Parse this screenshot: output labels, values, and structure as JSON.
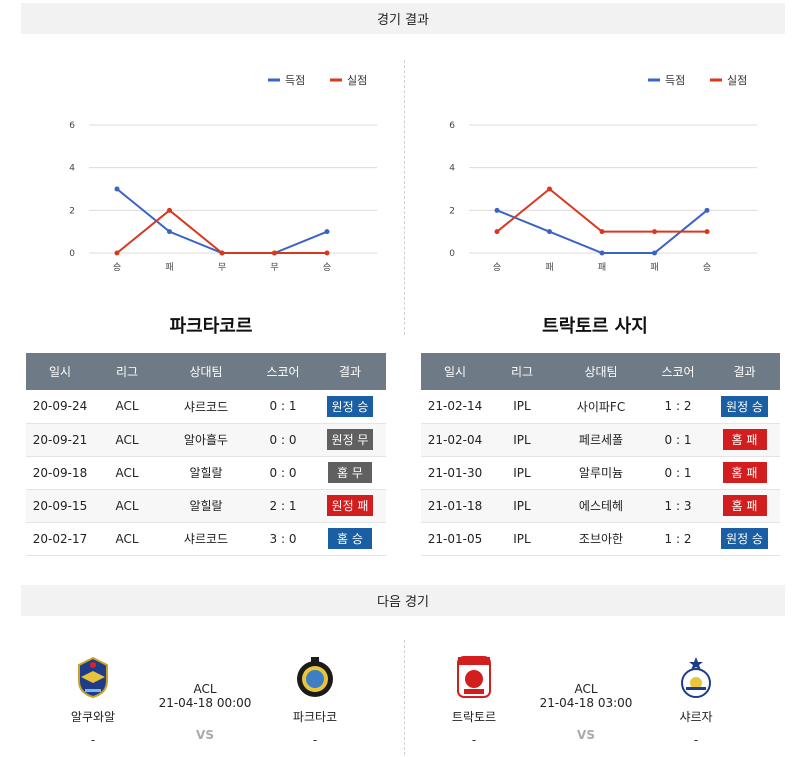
{
  "sections": {
    "results_title": "경기 결과",
    "next_title": "다음 경기"
  },
  "legend": {
    "scored": "득점",
    "conceded": "실점"
  },
  "colors": {
    "scored": "#3a63c7",
    "conceded": "#d9381e",
    "win_badge": "#1a5fa3",
    "draw_badge": "#606060",
    "loss_badge": "#d21e1e"
  },
  "chart_data": [
    {
      "type": "line",
      "categories": [
        "승",
        "패",
        "무",
        "무",
        "승"
      ],
      "ylim": [
        0,
        6
      ],
      "yticks": [
        0,
        2,
        4,
        6
      ],
      "grid": true,
      "legend_position": "top-right",
      "series": [
        {
          "name": "득점",
          "values": [
            3,
            1,
            0,
            0,
            1
          ]
        },
        {
          "name": "실점",
          "values": [
            0,
            2,
            0,
            0,
            0
          ]
        }
      ]
    },
    {
      "type": "line",
      "categories": [
        "승",
        "패",
        "패",
        "패",
        "승"
      ],
      "ylim": [
        0,
        6
      ],
      "yticks": [
        0,
        2,
        4,
        6
      ],
      "grid": true,
      "legend_position": "top-right",
      "series": [
        {
          "name": "득점",
          "values": [
            2,
            1,
            0,
            0,
            2
          ]
        },
        {
          "name": "실점",
          "values": [
            1,
            3,
            1,
            1,
            1
          ]
        }
      ]
    }
  ],
  "left_team": {
    "name": "파크타코르",
    "headers": [
      "일시",
      "리그",
      "상대팀",
      "스코어",
      "결과"
    ],
    "rows": [
      {
        "date": "20-09-24",
        "league": "ACL",
        "opponent": "샤르코드",
        "score": "0 : 1",
        "result": "원정 승",
        "color": "blue"
      },
      {
        "date": "20-09-21",
        "league": "ACL",
        "opponent": "알아흘두",
        "score": "0 : 0",
        "result": "원정 무",
        "color": "gray"
      },
      {
        "date": "20-09-18",
        "league": "ACL",
        "opponent": "알힐랄",
        "score": "0 : 0",
        "result": "홈 무",
        "color": "gray"
      },
      {
        "date": "20-09-15",
        "league": "ACL",
        "opponent": "알힐랄",
        "score": "2 : 1",
        "result": "원정 패",
        "color": "red"
      },
      {
        "date": "20-02-17",
        "league": "ACL",
        "opponent": "샤르코드",
        "score": "3 : 0",
        "result": "홈 승",
        "color": "blue"
      }
    ]
  },
  "right_team": {
    "name": "트락토르 사지",
    "headers": [
      "일시",
      "리그",
      "상대팀",
      "스코어",
      "결과"
    ],
    "rows": [
      {
        "date": "21-02-14",
        "league": "IPL",
        "opponent": "사이파FC",
        "score": "1 : 2",
        "result": "원정 승",
        "color": "blue"
      },
      {
        "date": "21-02-04",
        "league": "IPL",
        "opponent": "페르세폴",
        "score": "0 : 1",
        "result": "홈 패",
        "color": "red"
      },
      {
        "date": "21-01-30",
        "league": "IPL",
        "opponent": "알루미늄",
        "score": "0 : 1",
        "result": "홈 패",
        "color": "red"
      },
      {
        "date": "21-01-18",
        "league": "IPL",
        "opponent": "에스테헤",
        "score": "1 : 3",
        "result": "홈 패",
        "color": "red"
      },
      {
        "date": "21-01-05",
        "league": "IPL",
        "opponent": "조브아한",
        "score": "1 : 2",
        "result": "원정 승",
        "color": "blue"
      }
    ]
  },
  "next_matches": [
    {
      "home": {
        "name": "알쿠와알",
        "score": "-",
        "logo": "al-quwa-al-jawiya-logo"
      },
      "away": {
        "name": "파크타코",
        "score": "-",
        "logo": "pakhtakor-logo"
      },
      "league": "ACL",
      "datetime": "21-04-18 00:00",
      "vs": "VS"
    },
    {
      "home": {
        "name": "트락토르",
        "score": "-",
        "logo": "tractor-logo"
      },
      "away": {
        "name": "샤르자",
        "score": "-",
        "logo": "sharjah-logo"
      },
      "league": "ACL",
      "datetime": "21-04-18 03:00",
      "vs": "VS"
    }
  ]
}
